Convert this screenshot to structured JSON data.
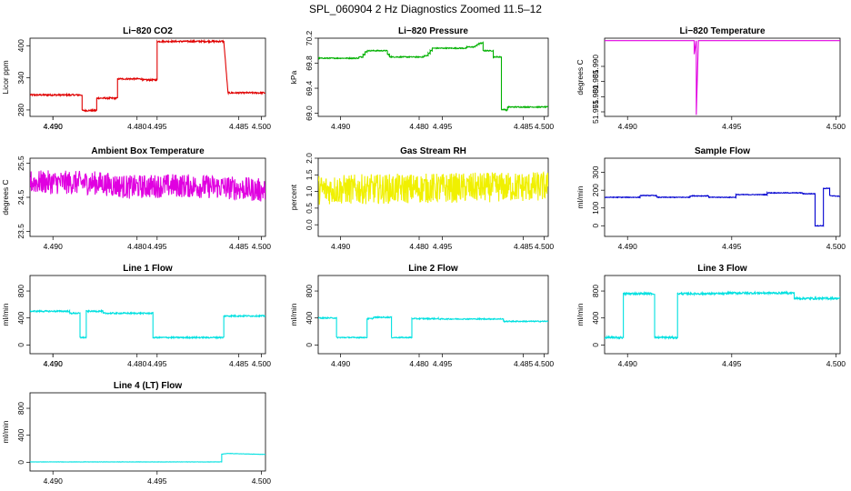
{
  "figure_title": "SPL_060904  2 Hz Diagnostics Zoomed 11.5–12",
  "chart_data": [
    {
      "type": "line",
      "title": "Li−820 CO2",
      "xlabel": "",
      "ylabel": "Licor ppm",
      "color": "#e00000",
      "xlim": [
        4.4889,
        4.5002
      ],
      "ylim": [
        268,
        414
      ],
      "xticks": [
        "4.490",
        "4.485",
        "4.490",
        "4.495",
        "4.500"
      ],
      "xtick_values": [
        4.49,
        4.485,
        4.49,
        4.495,
        4.5
      ],
      "yticks": [
        "280",
        "340",
        "400"
      ],
      "ytick_values": [
        280,
        340,
        400
      ],
      "series": [
        {
          "noise": 1.5,
          "x": [
            4.4889,
            4.4898,
            4.4898,
            4.4914,
            4.4914,
            4.4921,
            4.4921,
            4.4931,
            4.4931,
            4.4943,
            4.4943,
            4.495,
            4.495,
            4.4982,
            4.4982,
            4.4984,
            4.4984,
            4.5002
          ],
          "y": [
            308,
            308,
            308,
            308,
            279,
            279,
            302,
            302,
            338,
            338,
            336,
            336,
            408,
            408,
            408,
            312,
            312,
            312
          ]
        }
      ]
    },
    {
      "type": "line",
      "title": "Li−820 Pressure",
      "xlabel": "",
      "ylabel": "kPa",
      "color": "#00b000",
      "xlim": [
        4.4889,
        4.5002
      ],
      "ylim": [
        68.95,
        70.2
      ],
      "xticks": [
        "4.480",
        "4.485",
        "4.490",
        "4.495",
        "4.500"
      ],
      "xtick_values": [
        4.48,
        4.485,
        4.49,
        4.495,
        4.5
      ],
      "yticks": [
        "69.0",
        "69.4",
        "69.8",
        "70.2"
      ],
      "ytick_values": [
        69.0,
        69.4,
        69.8,
        70.2
      ],
      "series": [
        {
          "noise": 0.008,
          "x": [
            4.4889,
            4.4909,
            4.4909,
            4.4911,
            4.4911,
            4.4912,
            4.4912,
            4.4913,
            4.4913,
            4.4923,
            4.4923,
            4.4924,
            4.4924,
            4.4925,
            4.4925,
            4.4941,
            4.4941,
            4.4943,
            4.4943,
            4.4944,
            4.4944,
            4.4945,
            4.4945,
            4.4962,
            4.4962,
            4.4966,
            4.4966,
            4.4967,
            4.4967,
            4.4968,
            4.4968,
            4.497,
            4.497,
            4.4975,
            4.4975,
            4.4977,
            4.4977,
            4.4979,
            4.4979,
            4.4981,
            4.4981,
            4.4982,
            4.4982,
            4.4983,
            4.4983,
            4.5002
          ],
          "y": [
            69.88,
            69.88,
            69.9,
            69.9,
            69.94,
            69.94,
            69.98,
            69.98,
            70.0,
            70.0,
            69.94,
            69.94,
            69.9,
            69.9,
            69.9,
            69.9,
            69.92,
            69.92,
            69.96,
            69.96,
            70.0,
            70.0,
            70.04,
            70.04,
            70.06,
            70.06,
            70.08,
            70.08,
            70.1,
            70.1,
            70.12,
            70.12,
            70.0,
            70.0,
            69.9,
            69.9,
            69.9,
            69.9,
            69.06,
            69.06,
            69.05,
            69.05,
            69.1,
            69.1,
            69.1,
            69.1
          ]
        }
      ]
    },
    {
      "type": "line",
      "title": "Li−820 Temperature",
      "xlabel": "",
      "ylabel": "degrees C",
      "color": "#e000e0",
      "xlim": [
        4.4889,
        4.5002
      ],
      "ylim": [
        51.9735,
        51.9993
      ],
      "xticks": [
        "4.480",
        "4.485",
        "4.490",
        "4.495",
        "4.500"
      ],
      "xtick_values": [
        4.48,
        4.485,
        4.49,
        4.495,
        4.5
      ],
      "yticks": [
        "51.975",
        "51.980",
        "51.985",
        "51.990"
      ],
      "ytick_values": [
        51.975,
        51.98,
        51.985,
        51.99
      ],
      "series": [
        {
          "noise": 0,
          "x": [
            4.4889,
            4.4932,
            4.4932,
            4.4933,
            4.4933,
            4.4934,
            4.4934,
            4.5002
          ],
          "y": [
            51.9985,
            51.9985,
            51.994,
            51.9985,
            51.974,
            51.9985,
            51.9985,
            51.9985
          ]
        }
      ]
    },
    {
      "type": "line",
      "title": "Ambient Box Temperature",
      "xlabel": "",
      "ylabel": "degrees C",
      "color": "#e000e0",
      "xlim": [
        4.4889,
        4.5002
      ],
      "ylim": [
        23.35,
        25.65
      ],
      "xticks": [
        "4.480",
        "4.485",
        "4.490",
        "4.495",
        "4.500"
      ],
      "xtick_values": [
        4.48,
        4.485,
        4.49,
        4.495,
        4.5
      ],
      "yticks": [
        "23.5",
        "24.5",
        "25.5"
      ],
      "ytick_values": [
        23.5,
        24.5,
        25.5
      ],
      "series": [
        {
          "noise": 0.35,
          "x": [
            4.4889,
            4.4922,
            4.4936,
            4.4958,
            4.4981,
            4.5002
          ],
          "y": [
            24.95,
            24.92,
            24.8,
            24.85,
            24.8,
            24.7
          ]
        }
      ]
    },
    {
      "type": "line",
      "title": "Gas Stream RH",
      "xlabel": "",
      "ylabel": "percent",
      "color": "#f0f000",
      "xlim": [
        4.4889,
        4.5002
      ],
      "ylim": [
        -0.35,
        2.0
      ],
      "xticks": [
        "4.480",
        "4.485",
        "4.490",
        "4.495",
        "4.500"
      ],
      "xtick_values": [
        4.48,
        4.485,
        4.49,
        4.495,
        4.5
      ],
      "yticks": [
        "0.0",
        "0.5",
        "1.0",
        "1.5",
        "2.0"
      ],
      "ytick_values": [
        0.0,
        0.5,
        1.0,
        1.5,
        2.0
      ],
      "series": [
        {
          "noise": 0.45,
          "x": [
            4.4889,
            4.5002
          ],
          "y": [
            1.05,
            1.15
          ]
        }
      ]
    },
    {
      "type": "line",
      "title": "Sample Flow",
      "xlabel": "",
      "ylabel": "ml/min",
      "color": "#0000d0",
      "xlim": [
        4.4889,
        4.5002
      ],
      "ylim": [
        -60,
        380
      ],
      "xticks": [
        "4.480",
        "4.485",
        "4.490",
        "4.495",
        "4.500"
      ],
      "xtick_values": [
        4.48,
        4.485,
        4.49,
        4.495,
        4.5
      ],
      "yticks": [
        "0",
        "100",
        "200",
        "300"
      ],
      "ytick_values": [
        0,
        100,
        200,
        300
      ],
      "series": [
        {
          "noise": 2,
          "x": [
            4.4889,
            4.4906,
            4.4906,
            4.4914,
            4.4914,
            4.493,
            4.493,
            4.4939,
            4.4939,
            4.4952,
            4.4952,
            4.4967,
            4.4967,
            4.4984,
            4.4984,
            4.499,
            4.499,
            4.4994,
            4.4994,
            4.4997,
            4.4997,
            4.5002
          ],
          "y": [
            160,
            160,
            170,
            170,
            160,
            160,
            168,
            168,
            160,
            160,
            175,
            175,
            185,
            185,
            180,
            180,
            0,
            0,
            210,
            210,
            170,
            165
          ]
        }
      ]
    },
    {
      "type": "line",
      "title": "Line 1 Flow",
      "xlabel": "",
      "ylabel": "ml/min",
      "color": "#00e0e0",
      "xlim": [
        4.4889,
        4.5002
      ],
      "ylim": [
        -130,
        1030
      ],
      "xticks": [
        "4.490",
        "4.485",
        "4.490",
        "4.495",
        "4.500"
      ],
      "xtick_values": [
        4.49,
        4.485,
        4.49,
        4.495,
        4.5
      ],
      "yticks": [
        "0",
        "400",
        "800"
      ],
      "ytick_values": [
        0,
        400,
        800
      ],
      "series": [
        {
          "noise": 10,
          "x": [
            4.4889,
            4.4908,
            4.4908,
            4.4913,
            4.4913,
            4.4916,
            4.4916,
            4.4924,
            4.4924,
            4.4948,
            4.4948,
            4.498,
            4.498,
            4.4982,
            4.4982,
            4.5002
          ],
          "y": [
            500,
            500,
            470,
            470,
            110,
            110,
            500,
            500,
            470,
            470,
            110,
            110,
            110,
            110,
            430,
            430
          ]
        }
      ]
    },
    {
      "type": "line",
      "title": "Line 2 Flow",
      "xlabel": "",
      "ylabel": "ml/min",
      "color": "#00e0e0",
      "xlim": [
        4.4889,
        4.5002
      ],
      "ylim": [
        -130,
        1030
      ],
      "xticks": [
        "4.480",
        "4.485",
        "4.490",
        "4.495",
        "4.500"
      ],
      "xtick_values": [
        4.48,
        4.485,
        4.49,
        4.495,
        4.5
      ],
      "yticks": [
        "0",
        "400",
        "800"
      ],
      "ytick_values": [
        0,
        400,
        800
      ],
      "series": [
        {
          "noise": 8,
          "x": [
            4.4889,
            4.4898,
            4.4898,
            4.4913,
            4.4913,
            4.4916,
            4.4916,
            4.4925,
            4.4925,
            4.4935,
            4.4935,
            4.4948,
            4.4948,
            4.498,
            4.498,
            4.5002
          ],
          "y": [
            400,
            400,
            110,
            110,
            390,
            390,
            410,
            410,
            110,
            110,
            390,
            390,
            385,
            385,
            350,
            350
          ]
        }
      ]
    },
    {
      "type": "line",
      "title": "Line 3 Flow",
      "xlabel": "",
      "ylabel": "ml/min",
      "color": "#00e0e0",
      "xlim": [
        4.4889,
        4.5002
      ],
      "ylim": [
        -130,
        1030
      ],
      "xticks": [
        "4.480",
        "4.485",
        "4.490",
        "4.495",
        "4.500"
      ],
      "xtick_values": [
        4.48,
        4.485,
        4.49,
        4.495,
        4.5
      ],
      "yticks": [
        "0",
        "400",
        "800"
      ],
      "ytick_values": [
        0,
        400,
        800
      ],
      "series": [
        {
          "noise": 15,
          "x": [
            4.4889,
            4.4898,
            4.4898,
            4.4913,
            4.4913,
            4.4924,
            4.4924,
            4.4948,
            4.4948,
            4.498,
            4.498,
            4.5002
          ],
          "y": [
            110,
            110,
            760,
            760,
            110,
            110,
            760,
            760,
            770,
            770,
            690,
            690
          ]
        }
      ]
    },
    {
      "type": "line",
      "title": "Line 4 (LT) Flow",
      "xlabel": "",
      "ylabel": "ml/min",
      "color": "#00e0e0",
      "xlim": [
        4.4889,
        4.5002
      ],
      "ylim": [
        -130,
        1030
      ],
      "xticks": [
        "4.480",
        "4.485",
        "4.490",
        "4.495",
        "4.500"
      ],
      "xtick_values": [
        4.48,
        4.485,
        4.49,
        4.495,
        4.5
      ],
      "yticks": [
        "0",
        "400",
        "800"
      ],
      "ytick_values": [
        0,
        400,
        800
      ],
      "series": [
        {
          "noise": 2,
          "x": [
            4.4889,
            4.4981,
            4.4981,
            4.4984,
            4.5002
          ],
          "y": [
            5,
            5,
            120,
            130,
            115
          ]
        }
      ]
    }
  ]
}
